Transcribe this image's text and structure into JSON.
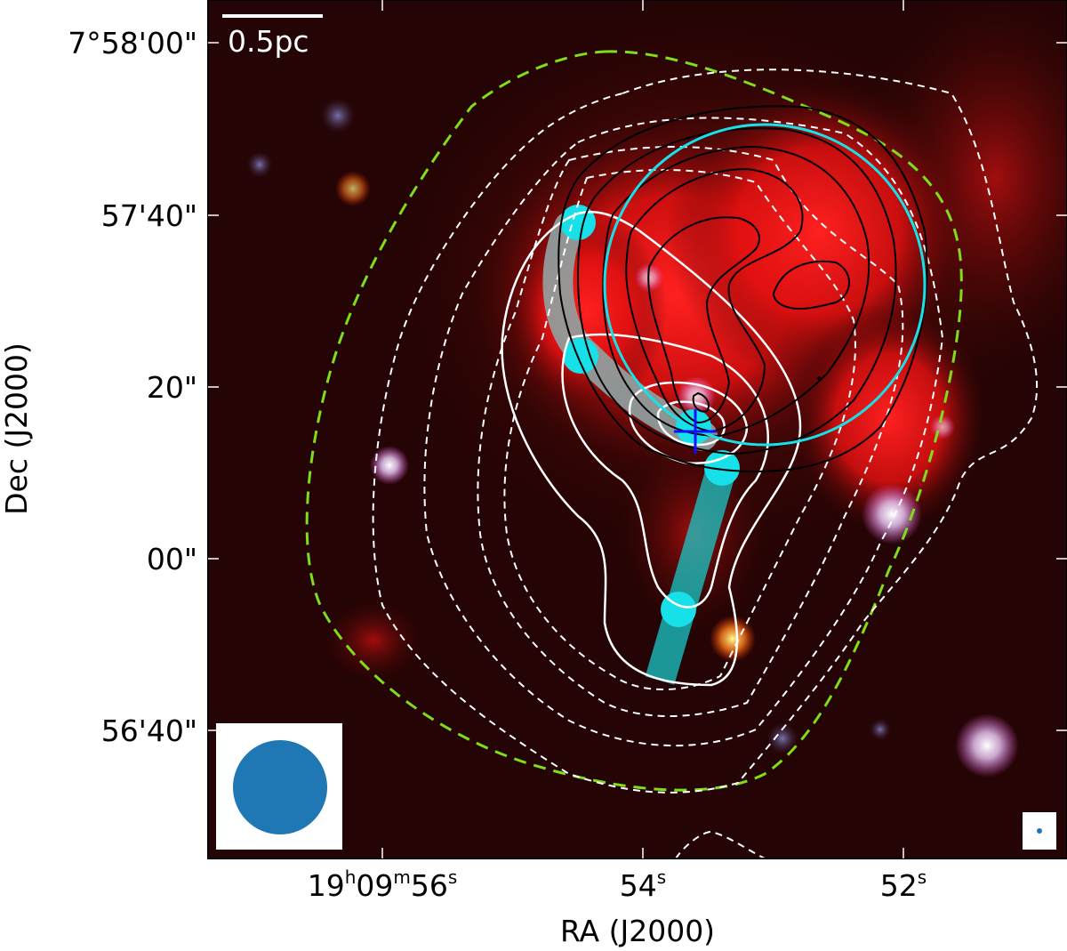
{
  "figure": {
    "scale_bar_label": "0.5pc",
    "x_axis_title": "RA (J2000)",
    "y_axis_title": "Dec (J2000)",
    "y_ticks": [
      "7°58'00\"",
      "57'40\"",
      "20\"",
      "00\"",
      "56'40\""
    ],
    "x_ticks": [
      {
        "main": "19",
        "sup1": "h",
        "mid": "09",
        "sup2": "m",
        "end": "56",
        "sup3": "s"
      },
      {
        "main": "54",
        "sup3": "s"
      },
      {
        "main": "52",
        "sup3": "s"
      }
    ]
  },
  "colors": {
    "background_image": "#2a0505",
    "glow_red": "#ff1010",
    "cyan": "#18e0e8",
    "filament_grey": "#8a9a9a",
    "green_contour": "#7fdd1a",
    "white_contour": "#ffffff",
    "black_contour": "#000000",
    "beam": "#1f77b4",
    "marker_cross": "#1010ff"
  },
  "legend_items": {
    "beam_large": "beam-ellipse",
    "beam_small": "beam-ellipse-small"
  }
}
